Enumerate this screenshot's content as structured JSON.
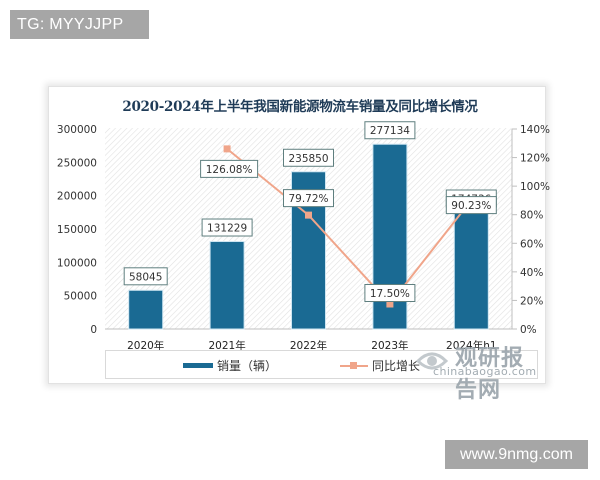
{
  "overlays": {
    "top_left_tag": "TG: MYYJJPP",
    "bottom_right_tag": "www.9nmg.com"
  },
  "watermark": {
    "cn": "观研报告网",
    "en": "chinabaogao.com"
  },
  "chart_data": {
    "type": "bar+line",
    "title": "2020-2024年上半年我国新能源物流车销量及同比增长情况",
    "categories": [
      "2020年",
      "2021年",
      "2022年",
      "2023年",
      "2024年h1"
    ],
    "series": [
      {
        "name": "销量（辆）",
        "type": "bar",
        "axis": "left",
        "color": "#1a6a93",
        "values": [
          58045,
          131229,
          235850,
          277134,
          174736
        ],
        "labels": [
          "58045",
          "131229",
          "235850",
          "277134",
          "174736"
        ]
      },
      {
        "name": "同比增长",
        "type": "line",
        "axis": "right",
        "color": "#f0a58a",
        "values": [
          null,
          126.08,
          79.72,
          17.5,
          90.23
        ],
        "labels": [
          "",
          "126.08%",
          "79.72%",
          "17.50%",
          "90.23%"
        ]
      }
    ],
    "y_left": {
      "ylim": [
        0,
        300000
      ],
      "ticks": [
        "0",
        "50000",
        "100000",
        "150000",
        "200000",
        "250000",
        "300000"
      ]
    },
    "y_right": {
      "ylim": [
        0,
        140
      ],
      "ticks": [
        "0%",
        "20%",
        "40%",
        "60%",
        "80%",
        "100%",
        "120%",
        "140%"
      ]
    },
    "legend": {
      "position": "bottom",
      "items": [
        "销量（辆）",
        "同比增长"
      ]
    },
    "grid": false,
    "plot_background": "diagonal hatch"
  }
}
